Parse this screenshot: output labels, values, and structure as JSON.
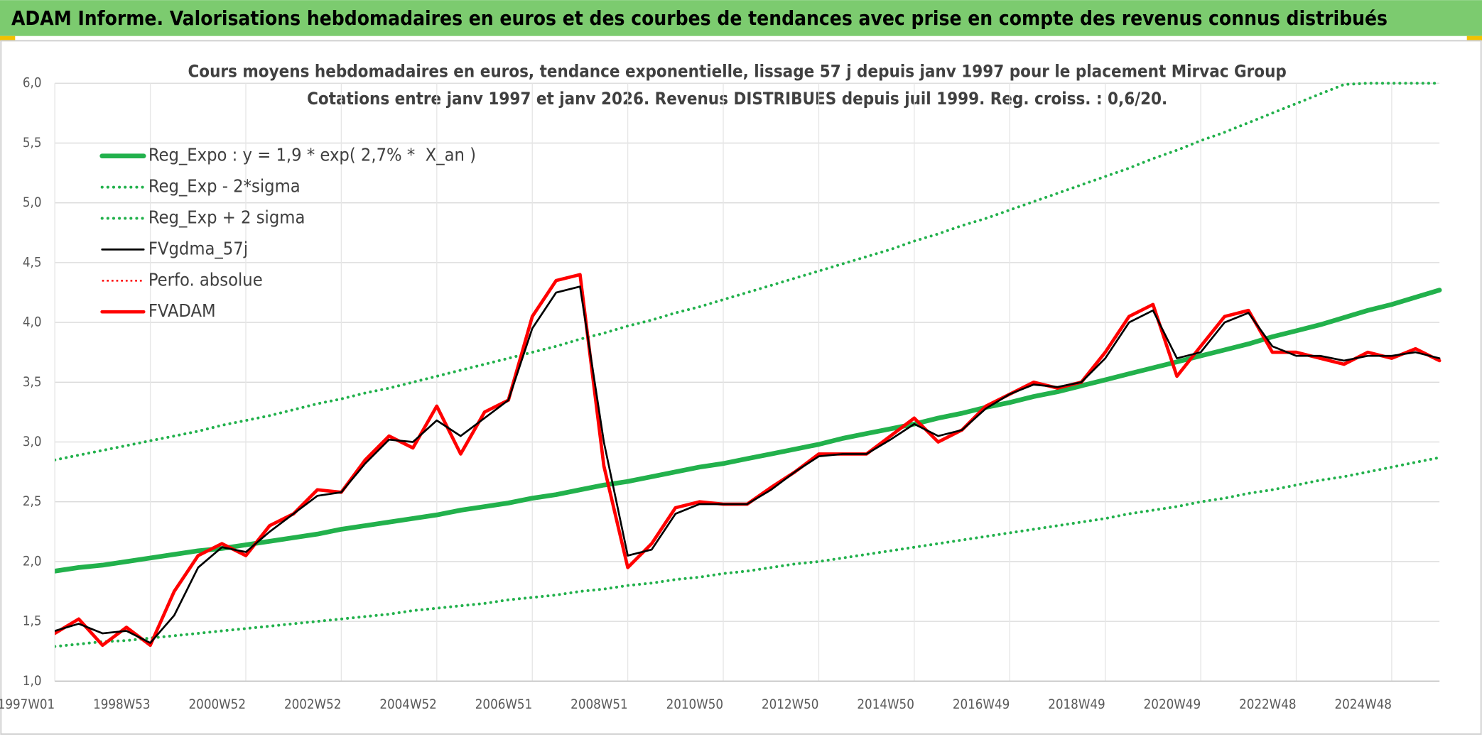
{
  "header": {
    "title": "ADAM Informe. Valorisations hebdomadaires en euros et des courbes de tendances avec prise en compte des revenus connus distribués"
  },
  "chart_data": {
    "type": "line",
    "title": "Cours moyens hebdomadaires en euros, tendance exponentielle, lissage 57 j depuis janv 1997 pour le placement Mirvac Group",
    "subtitle": "Cotations entre janv 1997 et janv 2026. Revenus DISTRIBUES depuis juil 1999. Reg. croiss. : 0,6/20.",
    "categories": [
      "1997W01",
      null,
      null,
      null,
      "1998W53",
      null,
      null,
      null,
      "2000W52",
      null,
      null,
      null,
      "2002W52",
      null,
      null,
      null,
      "2004W52",
      null,
      null,
      null,
      "2006W51",
      null,
      null,
      null,
      "2008W51",
      null,
      null,
      null,
      "2010W50",
      null,
      null,
      null,
      "2012W50",
      null,
      null,
      null,
      "2014W50",
      null,
      null,
      null,
      "2016W49",
      null,
      null,
      null,
      "2018W49",
      null,
      null,
      null,
      "2020W49",
      null,
      null,
      null,
      "2022W48",
      null,
      null,
      null,
      "2024W48",
      null,
      null
    ],
    "ylim": [
      1,
      6
    ],
    "yticks": [
      {
        "value": 1,
        "label": "1,0"
      },
      {
        "value": 1.5,
        "label": "1,5"
      },
      {
        "value": 2,
        "label": "2,0"
      },
      {
        "value": 2.5,
        "label": "2,5"
      },
      {
        "value": 3,
        "label": "3,0"
      },
      {
        "value": 3.5,
        "label": "3,5"
      },
      {
        "value": 4,
        "label": "4,0"
      },
      {
        "value": 4.5,
        "label": "4,5"
      },
      {
        "value": 5,
        "label": "5,0"
      },
      {
        "value": 5.5,
        "label": "5,5"
      },
      {
        "value": 6,
        "label": "6,0"
      }
    ],
    "grid": true,
    "legend": "upper left",
    "series": [
      {
        "name": "Reg_Expo : y = 1,9 * exp( 2,7% *  X_an )",
        "color": "#22b14c",
        "line_style": "solid",
        "values": [
          1.92,
          1.95,
          1.97,
          2.0,
          2.03,
          2.06,
          2.09,
          2.11,
          2.14,
          2.17,
          2.2,
          2.23,
          2.27,
          2.3,
          2.33,
          2.36,
          2.39,
          2.43,
          2.46,
          2.49,
          2.53,
          2.56,
          2.6,
          2.64,
          2.67,
          2.71,
          2.75,
          2.79,
          2.82,
          2.86,
          2.9,
          2.94,
          2.98,
          3.03,
          3.07,
          3.11,
          3.15,
          3.2,
          3.24,
          3.29,
          3.33,
          3.38,
          3.42,
          3.47,
          3.52,
          3.57,
          3.62,
          3.67,
          3.72,
          3.77,
          3.82,
          3.88,
          3.93,
          3.98,
          4.04,
          4.1,
          4.15,
          4.21,
          4.27
        ]
      },
      {
        "name": "Reg_Exp - 2*sigma",
        "color": "#22b14c",
        "line_style": "dotted",
        "values": [
          1.29,
          1.31,
          1.33,
          1.34,
          1.36,
          1.38,
          1.4,
          1.42,
          1.44,
          1.46,
          1.48,
          1.5,
          1.52,
          1.54,
          1.56,
          1.59,
          1.61,
          1.63,
          1.65,
          1.68,
          1.7,
          1.72,
          1.75,
          1.77,
          1.8,
          1.82,
          1.85,
          1.87,
          1.9,
          1.92,
          1.95,
          1.98,
          2.0,
          2.03,
          2.06,
          2.09,
          2.12,
          2.15,
          2.18,
          2.21,
          2.24,
          2.27,
          2.3,
          2.33,
          2.36,
          2.4,
          2.43,
          2.46,
          2.5,
          2.53,
          2.57,
          2.6,
          2.64,
          2.68,
          2.71,
          2.75,
          2.79,
          2.83,
          2.87
        ]
      },
      {
        "name": "Reg_Exp + 2 sigma",
        "color": "#22b14c",
        "line_style": "dotted",
        "values": [
          2.85,
          2.89,
          2.93,
          2.97,
          3.01,
          3.05,
          3.09,
          3.14,
          3.18,
          3.22,
          3.27,
          3.32,
          3.36,
          3.41,
          3.45,
          3.5,
          3.55,
          3.6,
          3.65,
          3.7,
          3.75,
          3.8,
          3.86,
          3.91,
          3.97,
          4.02,
          4.08,
          4.13,
          4.19,
          4.25,
          4.31,
          4.37,
          4.43,
          4.49,
          4.55,
          4.61,
          4.68,
          4.74,
          4.81,
          4.87,
          4.94,
          5.01,
          5.08,
          5.15,
          5.22,
          5.29,
          5.37,
          5.44,
          5.52,
          5.59,
          5.67,
          5.75,
          5.83,
          5.91,
          5.99,
          6.0,
          6.0,
          6.0,
          6.0
        ]
      },
      {
        "name": "FVgdma_57j",
        "color": "#000000",
        "line_style": "solid",
        "values": [
          1.42,
          1.48,
          1.4,
          1.42,
          1.32,
          1.55,
          1.95,
          2.12,
          2.08,
          2.25,
          2.4,
          2.55,
          2.58,
          2.82,
          3.02,
          3.0,
          3.18,
          3.05,
          3.2,
          3.35,
          3.95,
          4.25,
          4.3,
          3.0,
          2.05,
          2.1,
          2.4,
          2.48,
          2.48,
          2.48,
          2.6,
          2.75,
          2.88,
          2.9,
          2.9,
          3.02,
          3.15,
          3.05,
          3.1,
          3.28,
          3.4,
          3.48,
          3.46,
          3.5,
          3.7,
          4.0,
          4.1,
          3.7,
          3.75,
          4.0,
          4.08,
          3.8,
          3.72,
          3.72,
          3.68,
          3.72,
          3.72,
          3.75,
          3.7
        ]
      },
      {
        "name": "Perfo. absolue",
        "color": "#ff0000",
        "line_style": "dotted"
      },
      {
        "name": "FVADAM",
        "color": "#ff0000",
        "line_style": "solid",
        "values": [
          1.4,
          1.52,
          1.3,
          1.45,
          1.3,
          1.75,
          2.05,
          2.15,
          2.05,
          2.3,
          2.4,
          2.6,
          2.58,
          2.85,
          3.05,
          2.95,
          3.3,
          2.9,
          3.25,
          3.35,
          4.05,
          4.35,
          4.4,
          2.8,
          1.95,
          2.15,
          2.45,
          2.5,
          2.48,
          2.48,
          2.62,
          2.75,
          2.9,
          2.9,
          2.9,
          3.05,
          3.2,
          3.0,
          3.1,
          3.3,
          3.4,
          3.5,
          3.45,
          3.5,
          3.75,
          4.05,
          4.15,
          3.55,
          3.8,
          4.05,
          4.1,
          3.75,
          3.75,
          3.7,
          3.65,
          3.75,
          3.7,
          3.78,
          3.68
        ]
      }
    ]
  }
}
